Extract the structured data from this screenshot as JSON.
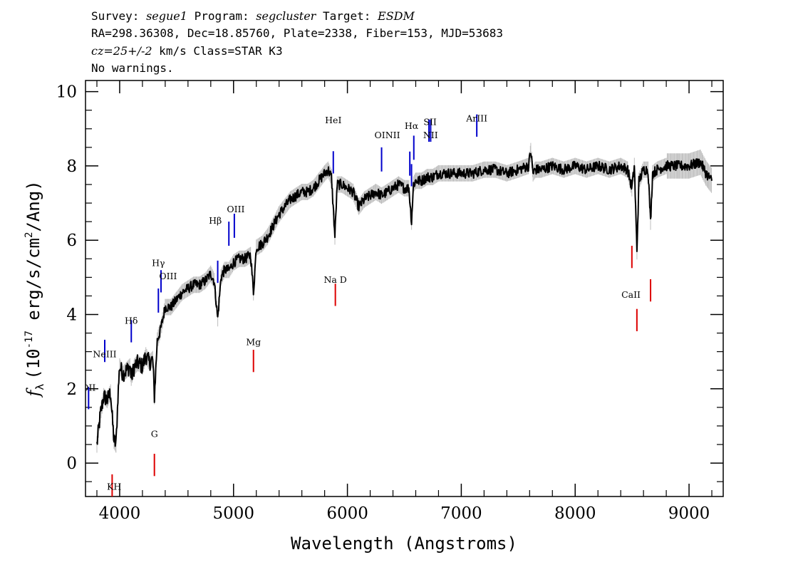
{
  "header": {
    "line1": [
      {
        "text": "Survey: ",
        "italic": false
      },
      {
        "text": "segue1",
        "italic": true
      },
      {
        "text": " Program: ",
        "italic": false
      },
      {
        "text": "segcluster",
        "italic": true
      },
      {
        "text": " Target: ",
        "italic": false
      },
      {
        "text": "ESDM",
        "italic": true
      }
    ],
    "line2": "RA=298.36308, Dec=18.85760, Plate=2338, Fiber=153, MJD=53683",
    "line3": [
      {
        "text": "cz=25+/-2",
        "italic": true
      },
      {
        "text": " km/s Class=STAR K3",
        "italic": false
      }
    ],
    "line4": "No warnings."
  },
  "chart_data": {
    "type": "line",
    "xlabel": "Wavelength (Angstroms)",
    "ylabel": "f_λ (10^-17 erg/s/cm^2/Ang)",
    "ylabel_parts": {
      "f": "f",
      "sub": "λ",
      "pre": "(10",
      "exp1": "-17",
      "mid": " erg/s/cm",
      "exp2": "2",
      "post": "/Ang)"
    },
    "xlim": [
      3700,
      9300
    ],
    "ylim": [
      -0.9,
      10.3
    ],
    "xticks": [
      4000,
      5000,
      6000,
      7000,
      8000,
      9000
    ],
    "xtick_labels": [
      "4000",
      "5000",
      "6000",
      "7000",
      "8000",
      "9000"
    ],
    "yticks": [
      0,
      2,
      4,
      6,
      8,
      10
    ],
    "ytick_labels": [
      "0",
      "2",
      "4",
      "6",
      "8",
      "10"
    ],
    "grid": false,
    "colors": {
      "spectrum": "#000000",
      "error_band": "#bdbdbd",
      "emission": "#0000cc",
      "absorption": "#dd0000"
    },
    "series": [
      {
        "role": "flux",
        "x": [
          3800,
          3830,
          3860,
          3890,
          3920,
          3935,
          3950,
          3968,
          3985,
          4000,
          4030,
          4060,
          4090,
          4102,
          4130,
          4160,
          4200,
          4230,
          4260,
          4290,
          4305,
          4330,
          4360,
          4400,
          4450,
          4500,
          4550,
          4600,
          4650,
          4700,
          4750,
          4800,
          4830,
          4861,
          4890,
          4920,
          4960,
          5000,
          5050,
          5100,
          5150,
          5175,
          5200,
          5250,
          5300,
          5350,
          5400,
          5450,
          5500,
          5550,
          5600,
          5650,
          5700,
          5750,
          5800,
          5830,
          5860,
          5890,
          5910,
          5950,
          6000,
          6050,
          6100,
          6150,
          6200,
          6250,
          6300,
          6350,
          6400,
          6450,
          6500,
          6540,
          6563,
          6580,
          6600,
          6650,
          6700,
          6750,
          6800,
          6900,
          7000,
          7100,
          7200,
          7300,
          7400,
          7500,
          7590,
          7610,
          7630,
          7650,
          7700,
          7800,
          7900,
          8000,
          8100,
          8200,
          8300,
          8400,
          8460,
          8498,
          8520,
          8542,
          8560,
          8600,
          8640,
          8662,
          8680,
          8720,
          8800,
          8900,
          9000,
          9100,
          9150,
          9200
        ],
        "y": [
          0.5,
          1.3,
          1.8,
          1.7,
          1.9,
          1.2,
          0.6,
          0.5,
          1.8,
          2.6,
          2.4,
          2.5,
          2.6,
          2.3,
          2.6,
          2.7,
          2.6,
          2.9,
          2.7,
          2.8,
          1.8,
          3.3,
          3.6,
          4.2,
          4.2,
          4.4,
          4.6,
          4.7,
          4.8,
          4.8,
          4.9,
          5.1,
          4.9,
          3.9,
          5.0,
          5.2,
          5.2,
          5.4,
          5.5,
          5.5,
          5.6,
          4.6,
          5.8,
          5.9,
          6.1,
          6.4,
          6.7,
          6.9,
          7.1,
          7.2,
          7.3,
          7.3,
          7.4,
          7.6,
          7.8,
          7.9,
          7.7,
          6.1,
          7.5,
          7.5,
          7.4,
          7.3,
          6.9,
          7.1,
          7.2,
          7.3,
          7.2,
          7.3,
          7.4,
          7.5,
          7.4,
          7.4,
          6.5,
          7.5,
          7.6,
          7.6,
          7.7,
          7.7,
          7.8,
          7.8,
          7.8,
          7.8,
          7.9,
          7.9,
          7.8,
          7.9,
          8.0,
          8.4,
          7.8,
          7.9,
          7.9,
          8.0,
          7.9,
          8.0,
          7.9,
          8.0,
          7.9,
          8.0,
          7.9,
          7.4,
          8.0,
          5.7,
          7.6,
          7.9,
          7.9,
          6.5,
          7.8,
          7.9,
          8.0,
          8.0,
          8.0,
          8.1,
          7.8,
          7.6
        ]
      }
    ],
    "lines": [
      {
        "label": "OII",
        "x": 3727,
        "kind": "emission"
      },
      {
        "label": "NeIII",
        "x": 3869,
        "kind": "emission"
      },
      {
        "label": "Hδ",
        "x": 4102,
        "kind": "emission"
      },
      {
        "label": "Hγ",
        "x": 4340,
        "kind": "emission"
      },
      {
        "label": "OIII",
        "x": 4363,
        "kind": "emission"
      },
      {
        "label": "Hβ",
        "x": 4861,
        "kind": "emission"
      },
      {
        "label": "OIII",
        "x": 4959,
        "kind": "emission"
      },
      {
        "label": "OIII",
        "x": 5007,
        "kind": "emission"
      },
      {
        "label": "HeI",
        "x": 5876,
        "kind": "emission"
      },
      {
        "label": "OI",
        "x": 6300,
        "kind": "emission"
      },
      {
        "label": "NII",
        "x": 6548,
        "kind": "emission"
      },
      {
        "label": "Hα",
        "x": 6563,
        "kind": "emission"
      },
      {
        "label": "NII",
        "x": 6583,
        "kind": "emission"
      },
      {
        "label": "SII",
        "x": 6716,
        "kind": "emission"
      },
      {
        "label": "SII",
        "x": 6731,
        "kind": "emission"
      },
      {
        "label": "ArIII",
        "x": 7136,
        "kind": "emission"
      },
      {
        "label": "K",
        "x": 3934,
        "kind": "absorption"
      },
      {
        "label": "H",
        "x": 3969,
        "kind": "absorption"
      },
      {
        "label": "G",
        "x": 4305,
        "kind": "absorption"
      },
      {
        "label": "Mg",
        "x": 5175,
        "kind": "absorption"
      },
      {
        "label": "Na D",
        "x": 5894,
        "kind": "absorption"
      },
      {
        "label": "CaII",
        "x": 8498,
        "kind": "absorption"
      },
      {
        "label": "CaII",
        "x": 8542,
        "kind": "absorption"
      },
      {
        "label": "CaII",
        "x": 8662,
        "kind": "absorption"
      }
    ],
    "labels": [
      {
        "text": "OII",
        "x": 3727,
        "y": 1.95,
        "clip": true
      },
      {
        "text": "NeIII",
        "x": 3869,
        "y": 2.85
      },
      {
        "text": "Hδ",
        "x": 4102,
        "y": 3.75
      },
      {
        "text": "Hγ",
        "x": 4340,
        "y": 5.3
      },
      {
        "text": "OIII",
        "x": 4425,
        "y": 4.95
      },
      {
        "text": "Hβ",
        "x": 4840,
        "y": 6.45
      },
      {
        "text": "OIII",
        "x": 5020,
        "y": 6.75
      },
      {
        "text": "HeI",
        "x": 5876,
        "y": 9.15
      },
      {
        "text": "OINII",
        "x": 6350,
        "y": 8.75
      },
      {
        "text": "Hα",
        "x": 6563,
        "y": 9.0
      },
      {
        "text": "SII",
        "x": 6726,
        "y": 9.1
      },
      {
        "text": "NII",
        "x": 6730,
        "y": 8.75
      },
      {
        "text": "ArIII",
        "x": 7136,
        "y": 9.2
      },
      {
        "text": "KH",
        "x": 3951,
        "y": -0.72
      },
      {
        "text": "G",
        "x": 4305,
        "y": 0.7
      },
      {
        "text": "Mg",
        "x": 5175,
        "y": 3.18
      },
      {
        "text": "Na D",
        "x": 5894,
        "y": 4.85
      },
      {
        "text": "CaII",
        "x": 8490,
        "y": 4.45
      }
    ]
  }
}
